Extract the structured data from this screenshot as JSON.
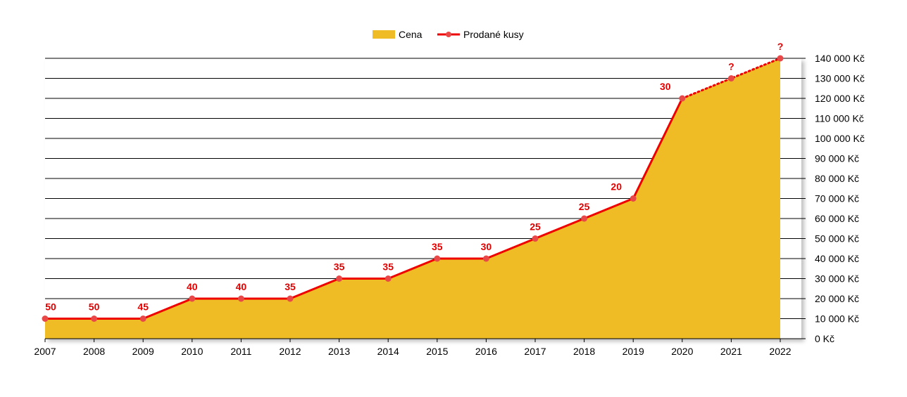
{
  "chart_data": {
    "type": "area",
    "categories": [
      "2007",
      "2008",
      "2009",
      "2010",
      "2011",
      "2012",
      "2013",
      "2014",
      "2015",
      "2016",
      "2017",
      "2018",
      "2019",
      "2020",
      "2021",
      "2022"
    ],
    "series": [
      {
        "name": "Cena",
        "type": "area",
        "values": [
          10000,
          10000,
          10000,
          20000,
          20000,
          20000,
          30000,
          30000,
          40000,
          40000,
          50000,
          60000,
          70000,
          120000,
          130000,
          140000
        ]
      },
      {
        "name": "Prodané kusy",
        "type": "line",
        "labels": [
          "50",
          "50",
          "45",
          "40",
          "40",
          "35",
          "35",
          "35",
          "35",
          "30",
          "25",
          "25",
          "20",
          "30",
          "?",
          "?"
        ],
        "dotted_from_index": 13
      }
    ],
    "y_axis": {
      "ticks": [
        "0 Kč",
        "10 000 Kč",
        "20 000 Kč",
        "30 000 Kč",
        "40 000 Kč",
        "50 000 Kč",
        "60 000 Kč",
        "70 000 Kč",
        "80 000 Kč",
        "90 000 Kč",
        "100 000 Kč",
        "110 000 Kč",
        "120 000 Kč",
        "130 000 Kč",
        "140 000 Kč"
      ],
      "position": "right",
      "ylim": [
        0,
        140000
      ]
    },
    "grid": true,
    "legend": "top-center",
    "colors": {
      "area": "#f0bc25",
      "line": "#ee0000",
      "marker": "#e84848",
      "label": "#e00000"
    }
  }
}
